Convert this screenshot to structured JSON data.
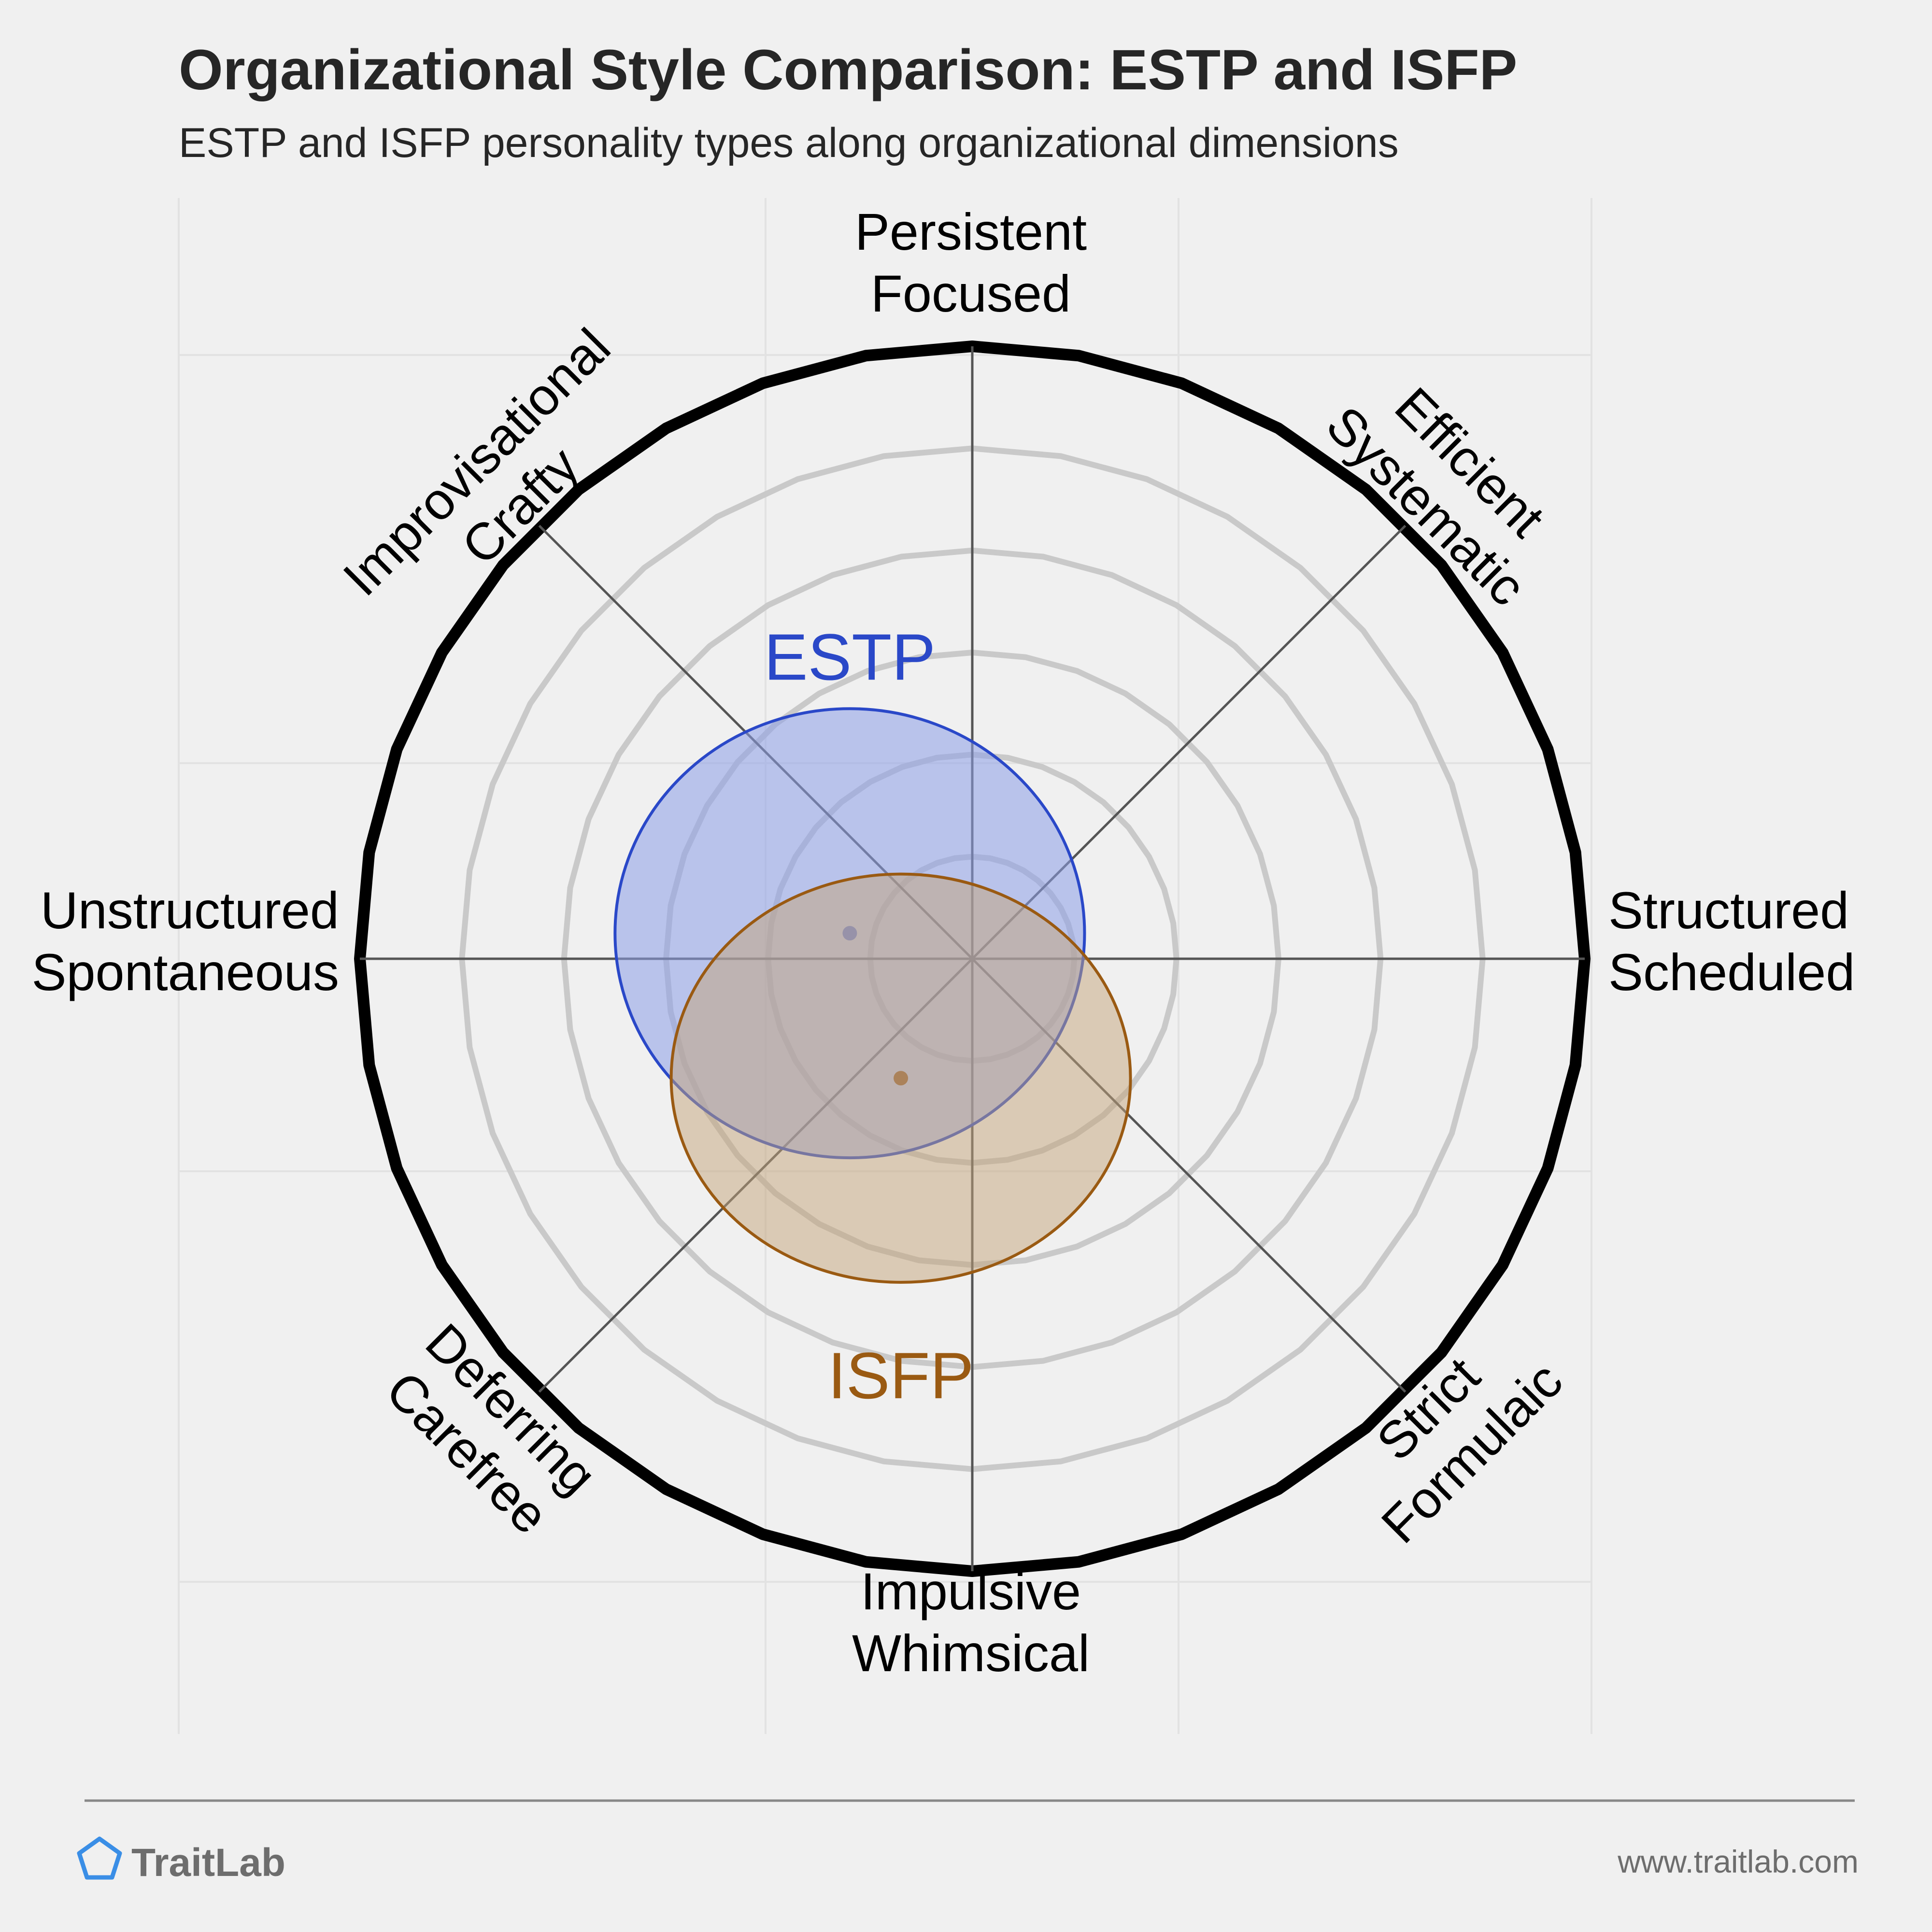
{
  "title": "Organizational Style Comparison: ESTP and ISFP",
  "subtitle": "ESTP and ISFP personality types along organizational dimensions",
  "brand": {
    "name": "TraitLab",
    "url": "www.traitlab.com",
    "logo_icon": "pentagon-icon",
    "logo_color": "#3a8ee6"
  },
  "chart_data": {
    "type": "scatter",
    "subtype": "polar-radar",
    "grid": true,
    "axes": [
      {
        "id": "persistent",
        "lines": [
          "Persistent",
          "Focused"
        ],
        "angle_deg": 90
      },
      {
        "id": "efficient",
        "lines": [
          "Efficient",
          "Systematic"
        ],
        "angle_deg": 45
      },
      {
        "id": "structured",
        "lines": [
          "Structured",
          "Scheduled"
        ],
        "angle_deg": 0
      },
      {
        "id": "strict",
        "lines": [
          "Strict",
          "Formulaic"
        ],
        "angle_deg": -45
      },
      {
        "id": "impulsive",
        "lines": [
          "Impulsive",
          "Whimsical"
        ],
        "angle_deg": -90
      },
      {
        "id": "deferring",
        "lines": [
          "Deferring",
          "Carefree"
        ],
        "angle_deg": -135
      },
      {
        "id": "unstructured",
        "lines": [
          "Unstructured",
          "Spontaneous"
        ],
        "angle_deg": 180
      },
      {
        "id": "improvisational",
        "lines": [
          "Improvisational",
          "Crafty"
        ],
        "angle_deg": 135
      }
    ],
    "rings": 6,
    "radius_max": 6,
    "series": [
      {
        "name": "ESTP",
        "color": "#2a48c8",
        "fill": "#8c9ee8",
        "fill_opacity": 0.55,
        "center": {
          "x": -1.2,
          "y": 0.25
        },
        "spread": {
          "rx": 2.3,
          "ry": 2.2
        }
      },
      {
        "name": "ISFP",
        "color": "#9a5a12",
        "fill": "#c4a47a",
        "fill_opacity": 0.5,
        "center": {
          "x": -0.7,
          "y": -1.17
        },
        "spread": {
          "rx": 2.25,
          "ry": 2.0
        }
      }
    ]
  }
}
